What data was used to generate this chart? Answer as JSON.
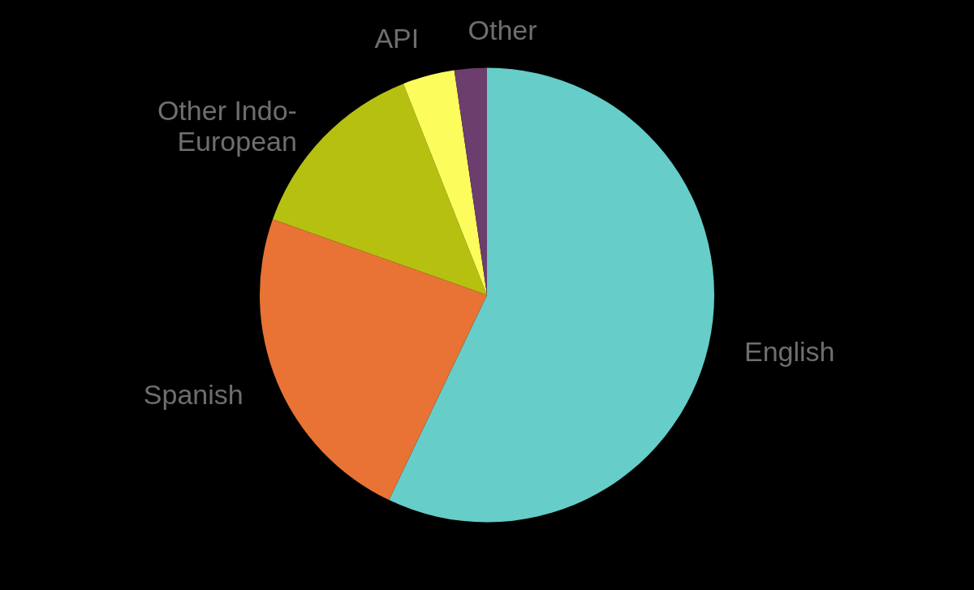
{
  "chart_data": {
    "type": "pie",
    "categories": [
      "English",
      "Spanish",
      "Other Indo-European",
      "API",
      "Other"
    ],
    "values": [
      57.1,
      23.3,
      13.6,
      3.7,
      2.3
    ],
    "colors": [
      "#66cdc8",
      "#e87334",
      "#b6c011",
      "#fcfc5c",
      "#6b3e6e"
    ]
  }
}
